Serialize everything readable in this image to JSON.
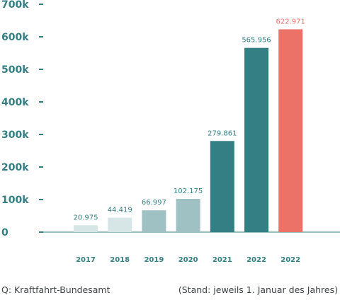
{
  "chart_data": {
    "type": "bar",
    "title": "",
    "xlabel": "",
    "ylabel": "",
    "categories": [
      "2017",
      "2018",
      "2019",
      "2020",
      "2021",
      "2022",
      "2022"
    ],
    "values": [
      20975,
      44419,
      66997,
      102175,
      279861,
      565956,
      622971
    ],
    "value_labels": [
      "20.975",
      "44.419",
      "66.997",
      "102.175",
      "279.861",
      "565.956",
      "622.971"
    ],
    "bar_colors": [
      "#d6e5e6",
      "#d6e5e6",
      "#9fc1c3",
      "#9fc1c3",
      "#347f84",
      "#347f84",
      "#ec7268"
    ],
    "highlight_label_color": "#ec7268",
    "axis_label_color": "#347f84",
    "ylim": [
      0,
      700000
    ],
    "yticks": [
      0,
      100000,
      200000,
      300000,
      400000,
      500000,
      600000,
      700000
    ],
    "ytick_labels": [
      "0",
      "100k",
      "200k",
      "300k",
      "400k",
      "500k",
      "600k",
      "700k"
    ],
    "grid": false,
    "legend": "none"
  },
  "footer": {
    "source": "Q: Kraftfahrt-Bundesamt",
    "note": "(Stand: jeweils 1. Januar des Jahres)"
  }
}
